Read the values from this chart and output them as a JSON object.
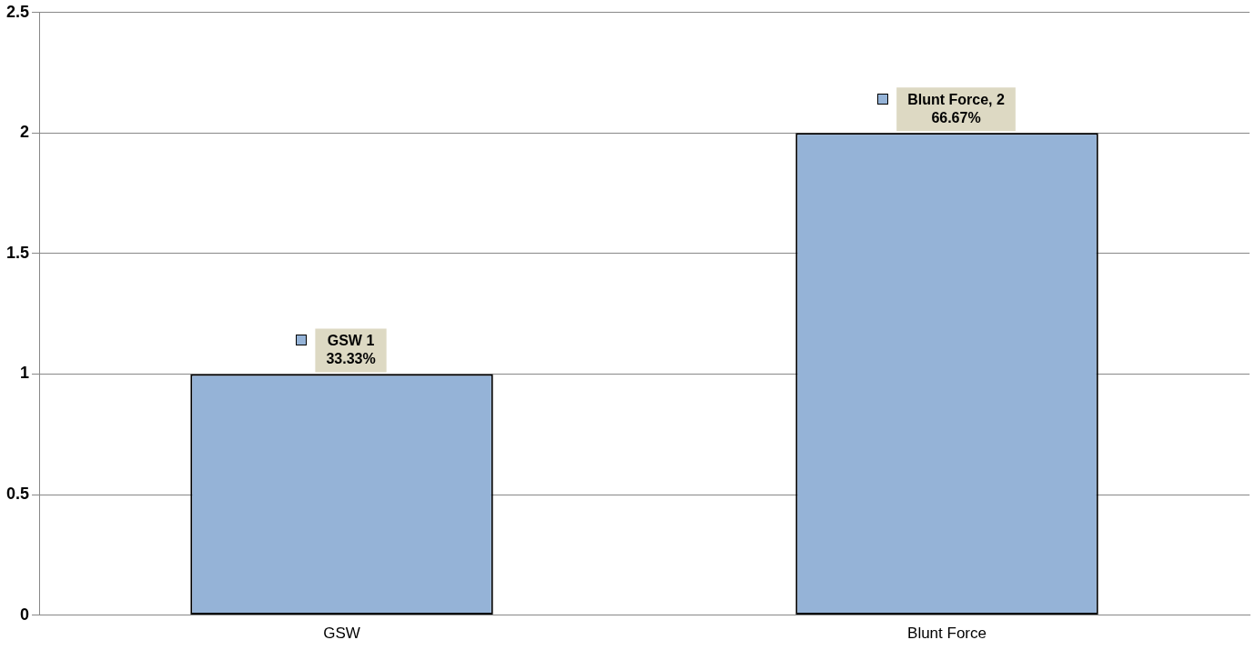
{
  "chart_data": {
    "type": "bar",
    "categories": [
      "GSW",
      "Blunt Force"
    ],
    "series": [
      {
        "color": "#95b3d7",
        "values": [
          1,
          2
        ],
        "value_labels": [
          "GSW 1\n33.33%",
          "Blunt Force, 2\n66.67%"
        ]
      }
    ],
    "ylim": [
      0,
      2.5
    ],
    "yticks": [
      0,
      0.5,
      1,
      1.5,
      2,
      2.5
    ],
    "grid": "y",
    "legend": false
  }
}
